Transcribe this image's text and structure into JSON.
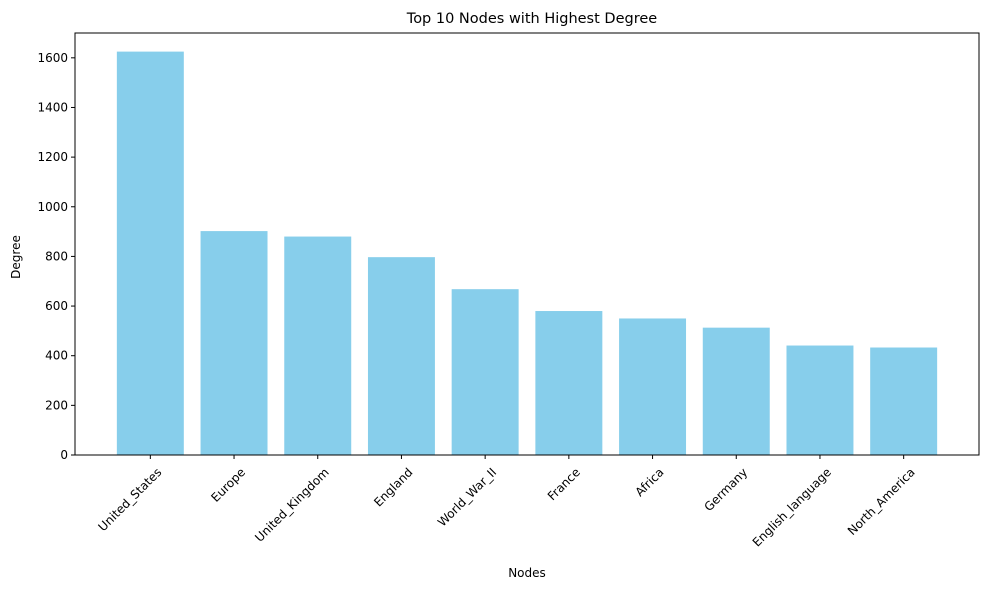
{
  "chart_data": {
    "type": "bar",
    "title": "Top 10 Nodes with Highest Degree",
    "xlabel": "Nodes",
    "ylabel": "Degree",
    "categories": [
      "United_States",
      "Europe",
      "United_Kingdom",
      "England",
      "World_War_II",
      "France",
      "Africa",
      "Germany",
      "English_language",
      "North_America"
    ],
    "values": [
      1625,
      902,
      880,
      797,
      668,
      580,
      550,
      513,
      441,
      433
    ],
    "ylim": [
      0,
      1700
    ],
    "yticks": [
      0,
      200,
      400,
      600,
      800,
      1000,
      1200,
      1400,
      1600
    ],
    "bar_color": "#87CEEB",
    "grid": false,
    "legend": "none"
  }
}
